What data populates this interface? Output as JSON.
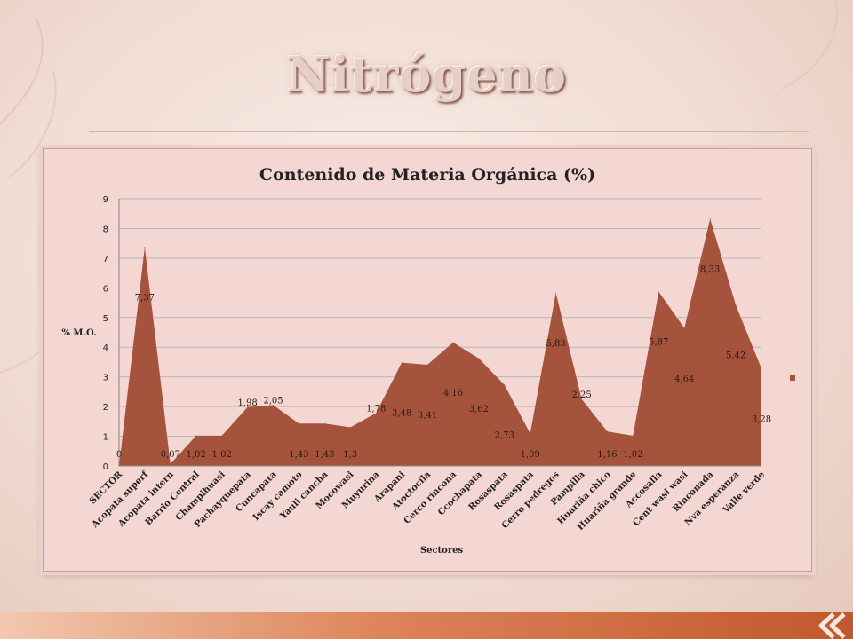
{
  "slide": {
    "title": "Nitrógeno"
  },
  "colors": {
    "series": "#a6533e",
    "title": "#e6cfc6",
    "frame": "#f4d7d2",
    "bar": "#c0582e"
  },
  "chart_data": {
    "type": "area",
    "title": "Contenido de Materia Orgánica (%)",
    "xlabel": "Sectores",
    "ylabel": "% M.O.",
    "ylim": [
      0,
      9
    ],
    "yticks": [
      "0",
      "1",
      "2",
      "3",
      "4",
      "5",
      "6",
      "7",
      "8",
      "9"
    ],
    "grid": true,
    "legend": "right",
    "categories": [
      "SECTOR",
      "Acopata superf",
      "Acopata intern",
      "Barrio Central",
      "Champihuasi",
      "Pachayquepata",
      "Cuncapata",
      "Iscay camoto",
      "Yauli cancha",
      "Mocowasi",
      "Muyurina",
      "Arapani",
      "Atoctocila",
      "Cerco rincona",
      "Ccochapata",
      "Rosaspata",
      "Rosaspata",
      "Cerro pedregos",
      "Pampilla",
      "Huariña chico",
      "Huariña grande",
      "Accosalla",
      "Cent wasi wasi",
      "Rinconada",
      "Nva esperanza",
      "Valle verde"
    ],
    "values": [
      0,
      7.37,
      0.07,
      1.02,
      1.02,
      1.98,
      2.05,
      1.43,
      1.43,
      1.3,
      1.78,
      3.48,
      3.41,
      4.16,
      3.62,
      2.73,
      1.09,
      5.83,
      2.25,
      1.16,
      1.02,
      5.87,
      4.64,
      8.33,
      5.42,
      3.28
    ],
    "labels": [
      "0",
      "7,37",
      "0,07",
      "1,02",
      "1,02",
      "1,98",
      "2,05",
      "1,43",
      "1,43",
      "1,3",
      "1,78",
      "3,48",
      "3,41",
      "4,16",
      "3,62",
      "2,73",
      "1,09",
      "5,83",
      "2,25",
      "1,16",
      "1,02",
      "5,87",
      "4,64",
      "8,33",
      "5,42",
      "3,28"
    ]
  }
}
